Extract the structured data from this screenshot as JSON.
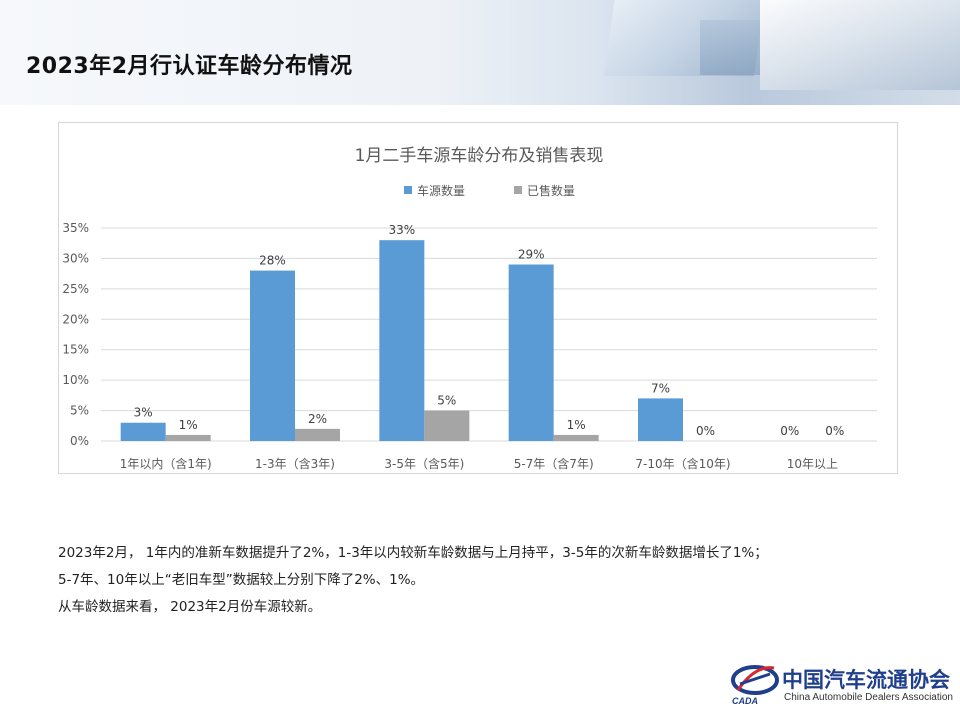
{
  "page": {
    "title": "2023年2月行认证车龄分布情况"
  },
  "chart_data": {
    "type": "bar",
    "title": "1月二手车源车龄分布及销售表现",
    "categories": [
      "1年以内（含1年)",
      "1-3年（含3年)",
      "3-5年（含5年)",
      "5-7年（含7年)",
      "7-10年（含10年)",
      "10年以上"
    ],
    "series": [
      {
        "name": "车源数量",
        "values": [
          3,
          28,
          33,
          29,
          7,
          0
        ],
        "color": "#5b9bd5"
      },
      {
        "name": "已售数量",
        "values": [
          1,
          2,
          5,
          1,
          0,
          0
        ],
        "color": "#a5a5a5"
      }
    ],
    "value_suffix": "%",
    "ylim": [
      0,
      35
    ],
    "yticks": [
      "0%",
      "5%",
      "10%",
      "15%",
      "20%",
      "25%",
      "30%",
      "35%"
    ],
    "grid": true,
    "legend_position": "top",
    "data_labels": true
  },
  "summary": {
    "lines": [
      "2023年2月， 1年内的准新车数据提升了2%，1-3年以内较新车龄数据与上月持平，3-5年的次新车龄数据增长了1%；",
      "5-7年、10年以上“老旧车型”数据较上分别下降了2%、1%。",
      "从车龄数据来看， 2023年2月份车源较新。"
    ]
  },
  "logo": {
    "name_cn": "中国汽车流通协会",
    "name_en": "China Automobile Dealers Association",
    "abbr": "CADA"
  }
}
